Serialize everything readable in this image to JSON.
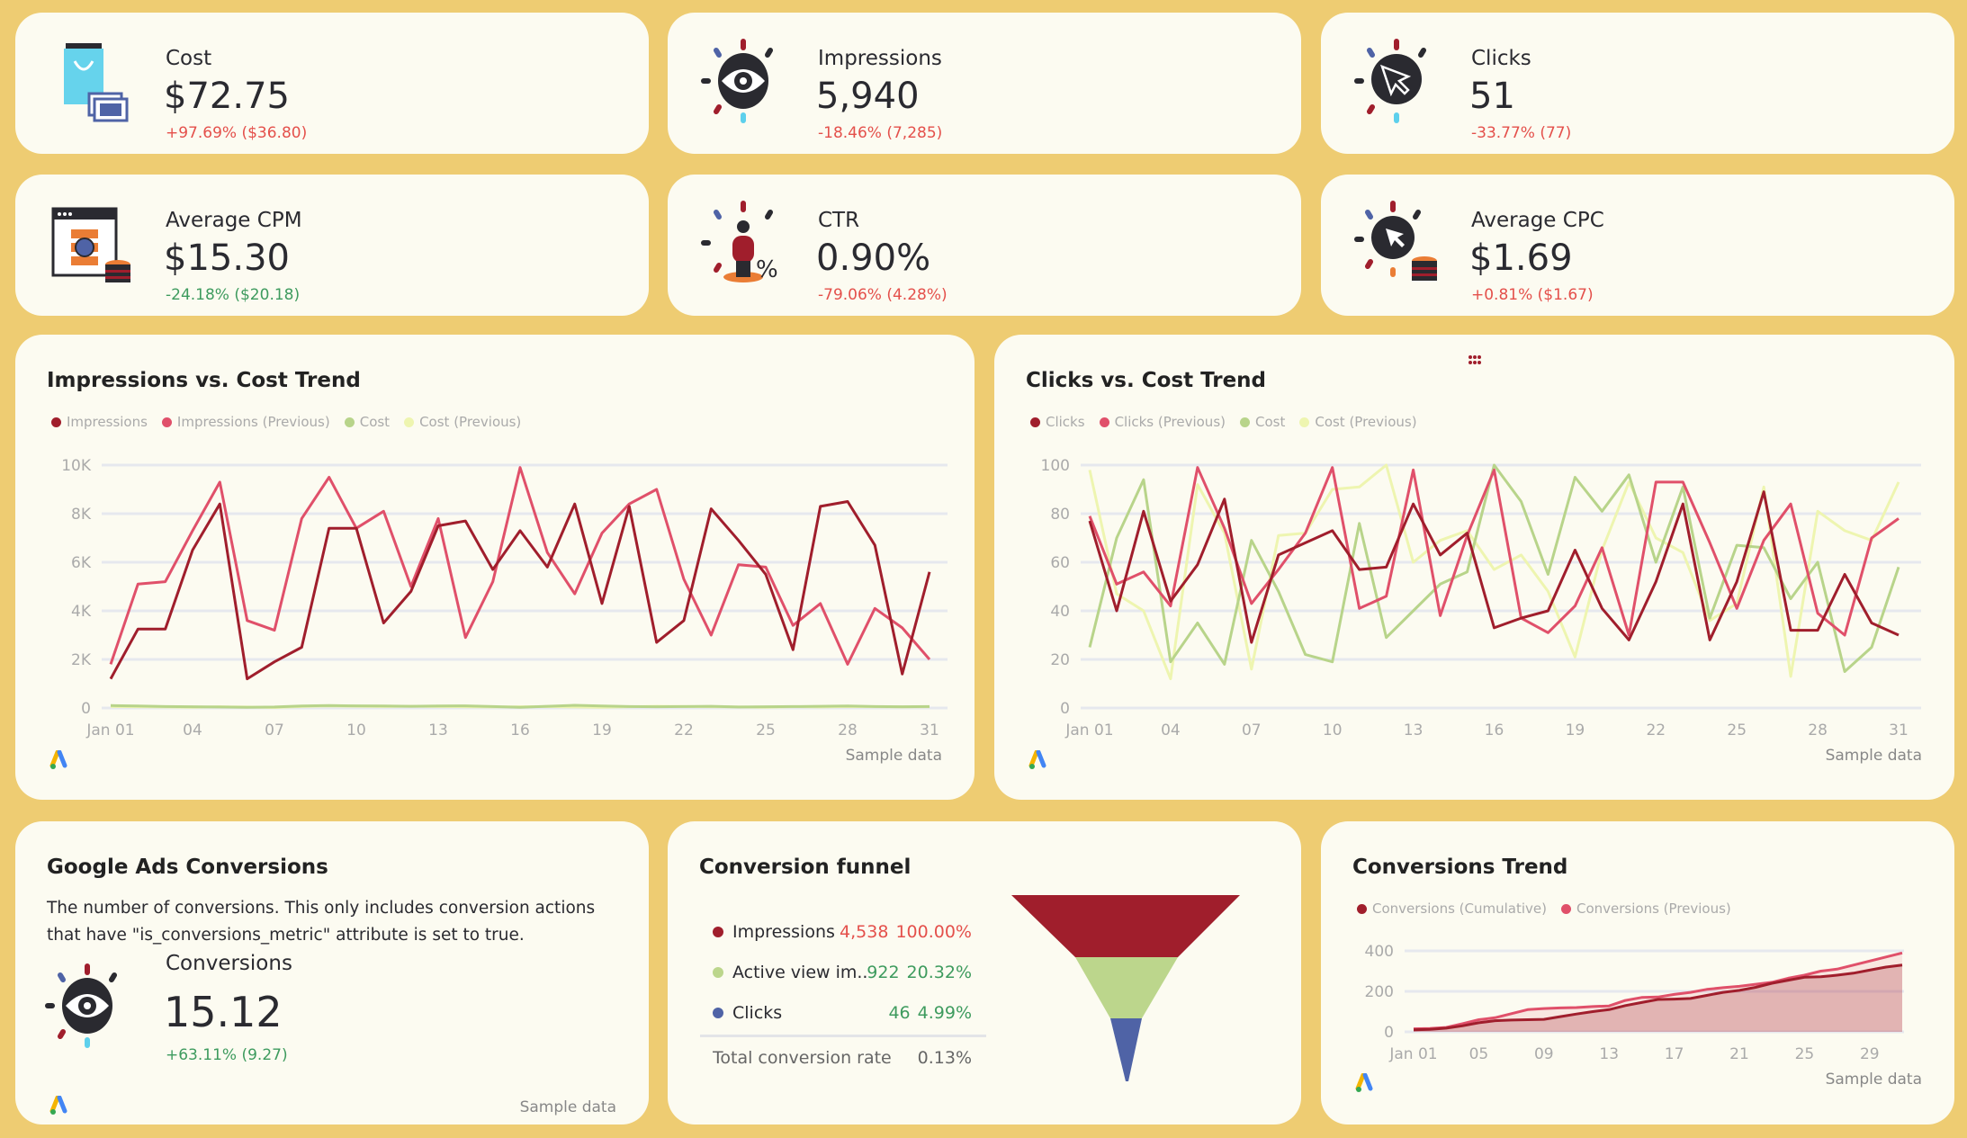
{
  "colors": {
    "background": "#EECC72",
    "card": "#FCFBF1",
    "dark_red": "#A01E2C",
    "pink": "#E0506A",
    "green": "#B8D48A",
    "light_yellow": "#EEF5B0",
    "blue": "#4F63A6",
    "negative": "#E4504B",
    "positive": "#3E9B5E"
  },
  "kpis": [
    {
      "label": "Cost",
      "value": "$72.75",
      "delta": "+97.69% ($36.80)",
      "delta_tone": "negative",
      "icon": "shopping-bag-icon"
    },
    {
      "label": "Impressions",
      "value": "5,940",
      "delta": "-18.46% (7,285)",
      "delta_tone": "negative",
      "icon": "eye-icon"
    },
    {
      "label": "Clicks",
      "value": "51",
      "delta": "-33.77% (77)",
      "delta_tone": "negative",
      "icon": "cursor-click-icon"
    },
    {
      "label": "Average CPM",
      "value": "$15.30",
      "delta": "-24.18% ($20.18)",
      "delta_tone": "positive",
      "icon": "browser-coins-icon"
    },
    {
      "label": "CTR",
      "value": "0.90%",
      "delta": "-79.06% (4.28%)",
      "delta_tone": "negative",
      "icon": "person-percent-icon"
    },
    {
      "label": "Average CPC",
      "value": "$1.69",
      "delta": "+0.81% ($1.67)",
      "delta_tone": "negative",
      "icon": "cursor-coins-icon"
    }
  ],
  "footer": {
    "sample": "Sample data"
  },
  "chart_data": [
    {
      "type": "line",
      "title": "Impressions vs. Cost Trend",
      "ylim": [
        0,
        10000
      ],
      "yticks": [
        "0",
        "2K",
        "4K",
        "6K",
        "8K",
        "10K"
      ],
      "ytick_values": [
        0,
        2000,
        4000,
        6000,
        8000,
        10000
      ],
      "xticks": [
        "Jan 01",
        "04",
        "07",
        "10",
        "13",
        "16",
        "19",
        "22",
        "25",
        "28",
        "31"
      ],
      "x": "Jan 01 – Jan 31 (daily)",
      "grid": true,
      "legend": "top-left",
      "series": [
        {
          "name": "Impressions",
          "color": "#A01E2C",
          "values": [
            1200,
            3250,
            3250,
            6500,
            8400,
            1200,
            1900,
            2500,
            7400,
            7400,
            3500,
            4800,
            7500,
            7700,
            5700,
            7300,
            5800,
            8400,
            4300,
            8300,
            2700,
            3600,
            8200,
            6900,
            5500,
            2400,
            8300,
            8500,
            6700,
            1400,
            5600
          ]
        },
        {
          "name": "Impressions (Previous)",
          "color": "#E0506A",
          "values": [
            1800,
            5100,
            5200,
            7300,
            9300,
            3600,
            3200,
            7800,
            9500,
            7400,
            8100,
            5000,
            7800,
            2900,
            5200,
            9900,
            6400,
            4700,
            7200,
            8400,
            9000,
            5300,
            3000,
            5900,
            5800,
            3400,
            4300,
            1800,
            4100,
            3300,
            2000
          ]
        },
        {
          "name": "Cost",
          "color": "#B8D48A",
          "values": [
            100,
            80,
            60,
            50,
            40,
            30,
            40,
            80,
            100,
            90,
            80,
            70,
            80,
            90,
            60,
            30,
            70,
            110,
            80,
            60,
            50,
            60,
            70,
            40,
            50,
            60,
            70,
            80,
            60,
            50,
            60
          ]
        },
        {
          "name": "Cost (Previous)",
          "color": "#EEF5B0",
          "values": [
            60,
            50,
            40,
            30,
            50,
            40,
            20,
            60,
            80,
            70,
            60,
            70,
            60,
            50,
            40,
            50,
            60,
            40,
            30,
            50,
            70,
            60,
            50,
            40,
            30,
            50,
            40,
            60,
            50,
            40,
            50
          ]
        }
      ]
    },
    {
      "type": "line",
      "title": "Clicks vs. Cost Trend",
      "ylim": [
        0,
        100
      ],
      "yticks": [
        "0",
        "20",
        "40",
        "60",
        "80",
        "100"
      ],
      "ytick_values": [
        0,
        20,
        40,
        60,
        80,
        100
      ],
      "xticks": [
        "Jan 01",
        "04",
        "07",
        "10",
        "13",
        "16",
        "19",
        "22",
        "25",
        "28",
        "31"
      ],
      "grid": true,
      "legend": "top-left",
      "series": [
        {
          "name": "Clicks",
          "color": "#A01E2C",
          "values": [
            77,
            40,
            81,
            44,
            59,
            86,
            27,
            63,
            68,
            73,
            57,
            58,
            84,
            63,
            72,
            33,
            37,
            40,
            65,
            41,
            28,
            52,
            84,
            28,
            52,
            89,
            32,
            32,
            55,
            35,
            30
          ]
        },
        {
          "name": "Clicks (Previous)",
          "color": "#E0506A",
          "values": [
            79,
            51,
            56,
            42,
            99,
            74,
            43,
            57,
            72,
            99,
            41,
            46,
            98,
            38,
            71,
            98,
            37,
            31,
            42,
            66,
            30,
            93,
            93,
            68,
            41,
            69,
            84,
            39,
            30,
            70,
            78
          ]
        },
        {
          "name": "Cost",
          "color": "#B8D48A",
          "values": [
            25,
            70,
            94,
            19,
            35,
            18,
            69,
            48,
            22,
            19,
            76,
            29,
            40,
            51,
            56,
            100,
            85,
            55,
            95,
            81,
            96,
            60,
            91,
            37,
            67,
            66,
            45,
            60,
            15,
            25,
            58
          ]
        },
        {
          "name": "Cost (Previous)",
          "color": "#EEF5B0",
          "values": [
            98,
            47,
            40,
            12,
            92,
            72,
            16,
            71,
            72,
            90,
            91,
            100,
            60,
            69,
            73,
            57,
            63,
            48,
            21,
            65,
            93,
            70,
            64,
            36,
            43,
            91,
            13,
            81,
            73,
            69,
            93
          ]
        }
      ]
    },
    {
      "type": "area",
      "title": "Conversions Trend",
      "ylim": [
        0,
        400
      ],
      "yticks": [
        "0",
        "200",
        "400"
      ],
      "ytick_values": [
        0,
        200,
        400
      ],
      "xticks": [
        "Jan 01",
        "05",
        "09",
        "13",
        "17",
        "21",
        "25",
        "29"
      ],
      "grid": true,
      "legend": "top-left",
      "series": [
        {
          "name": "Conversions (Cumulative)",
          "color": "#A01E2C",
          "values": [
            10,
            12,
            18,
            30,
            45,
            55,
            58,
            60,
            62,
            75,
            88,
            100,
            110,
            130,
            145,
            160,
            162,
            165,
            180,
            195,
            205,
            220,
            240,
            255,
            270,
            272,
            280,
            290,
            305,
            320,
            330
          ]
        },
        {
          "name": "Conversions (Previous)",
          "color": "#E0506A",
          "values": [
            15,
            17,
            22,
            40,
            60,
            70,
            90,
            110,
            115,
            118,
            120,
            125,
            128,
            155,
            170,
            172,
            185,
            195,
            210,
            218,
            225,
            235,
            245,
            265,
            280,
            300,
            310,
            330,
            350,
            370,
            390
          ]
        }
      ]
    }
  ],
  "conversions_card": {
    "title": "Google Ads Conversions",
    "description": "The number of conversions. This only includes conversion actions that have \"is_conversions_metric\" attribute is set to true.",
    "label": "Conversions",
    "value": "15.12",
    "delta": "+63.11% (9.27)"
  },
  "funnel": {
    "title": "Conversion funnel",
    "rows": [
      {
        "name": "Impressions",
        "value": "4,538",
        "percent": "100.00%",
        "color": "#A01E2C",
        "tone": "#E4504B"
      },
      {
        "name": "Active view im...",
        "value": "922",
        "percent": "20.32%",
        "color": "#BCD68C",
        "tone": "#3E9B5E"
      },
      {
        "name": "Clicks",
        "value": "46",
        "percent": "4.99%",
        "color": "#4F63A6",
        "tone": "#3E9B5E"
      }
    ],
    "total_label": "Total conversion rate",
    "total_value": "0.13%"
  }
}
